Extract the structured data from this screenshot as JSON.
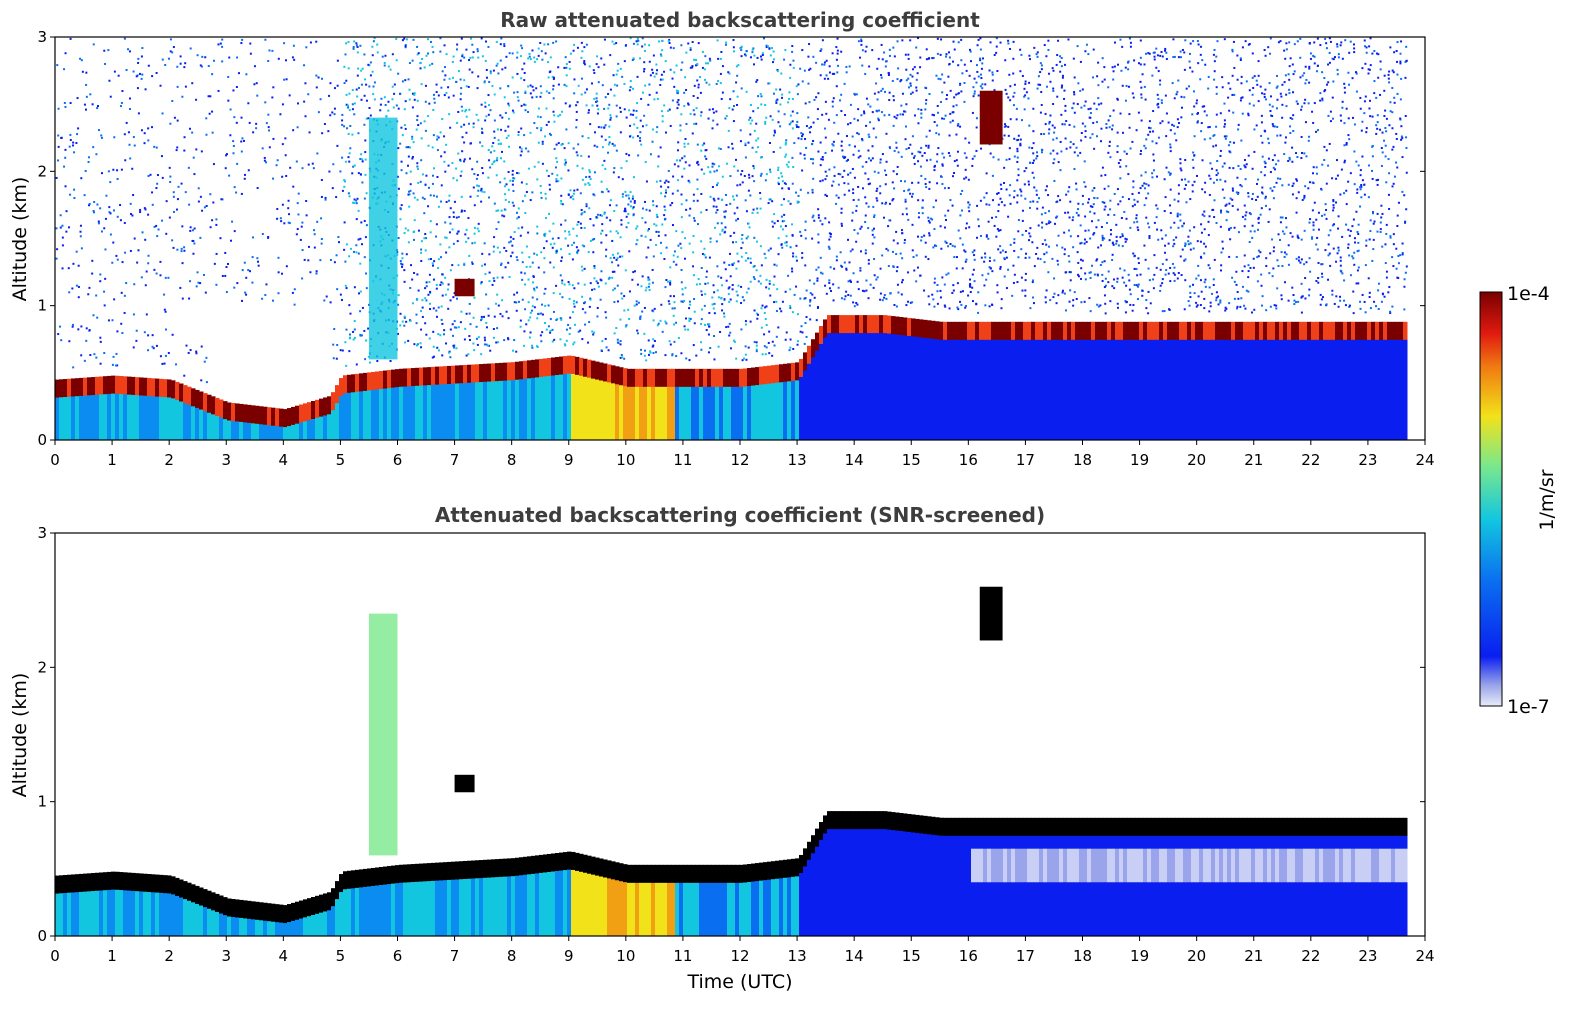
{
  "colors": {
    "low": "#e8ecf8",
    "mid_low": "#0a1ef0",
    "mid": "#12c6e0",
    "mid_high": "#f2e21a",
    "high": "#f04018",
    "max": "#7a0000",
    "saturated_screened": "#000000"
  },
  "chart_data": [
    {
      "type": "heatmap",
      "title": "Raw attenuated backscattering coefficient",
      "xlabel": "",
      "ylabel": "Altitude (km)",
      "xlim": [
        0,
        24
      ],
      "ylim": [
        0,
        3
      ],
      "x_ticks": [
        "0",
        "1",
        "2",
        "3",
        "4",
        "5",
        "6",
        "7",
        "8",
        "9",
        "10",
        "11",
        "12",
        "13",
        "14",
        "15",
        "16",
        "17",
        "18",
        "19",
        "20",
        "21",
        "22",
        "23",
        "24"
      ],
      "y_ticks": [
        "0",
        "1",
        "2",
        "3"
      ],
      "data_end_time": 23.7,
      "features": {
        "boundary_layer_top_km": [
          [
            0,
            0.42
          ],
          [
            1,
            0.45
          ],
          [
            2,
            0.42
          ],
          [
            3,
            0.25
          ],
          [
            4,
            0.2
          ],
          [
            4.8,
            0.3
          ],
          [
            5,
            0.45
          ],
          [
            6,
            0.5
          ],
          [
            8,
            0.55
          ],
          [
            9,
            0.6
          ],
          [
            10,
            0.5
          ],
          [
            12,
            0.5
          ],
          [
            13,
            0.55
          ],
          [
            13.5,
            0.9
          ],
          [
            14.5,
            0.9
          ],
          [
            15.5,
            0.85
          ]
        ],
        "cloud_patches": [
          {
            "t": [
              7.0,
              7.35
            ],
            "z": [
              1.07,
              1.2
            ]
          },
          {
            "t": [
              16.2,
              16.6
            ],
            "z": [
              2.2,
              2.6
            ]
          }
        ],
        "plume": {
          "t": [
            5.5,
            6.0
          ],
          "z": [
            0.6,
            2.4
          ]
        }
      }
    },
    {
      "type": "heatmap",
      "title": "Attenuated backscattering coefficient (SNR-screened)",
      "xlabel": "Time (UTC)",
      "ylabel": "Altitude (km)",
      "xlim": [
        0,
        24
      ],
      "ylim": [
        0,
        3
      ],
      "x_ticks": [
        "0",
        "1",
        "2",
        "3",
        "4",
        "5",
        "6",
        "7",
        "8",
        "9",
        "10",
        "11",
        "12",
        "13",
        "14",
        "15",
        "16",
        "17",
        "18",
        "19",
        "20",
        "21",
        "22",
        "23",
        "24"
      ],
      "y_ticks": [
        "0",
        "1",
        "2",
        "3"
      ],
      "data_end_time": 23.7
    }
  ],
  "colorbar": {
    "label": "1/m/sr",
    "max_label": "1e-4",
    "min_label": "1e-7",
    "range": [
      1e-07,
      0.0001
    ],
    "scale": "log"
  }
}
